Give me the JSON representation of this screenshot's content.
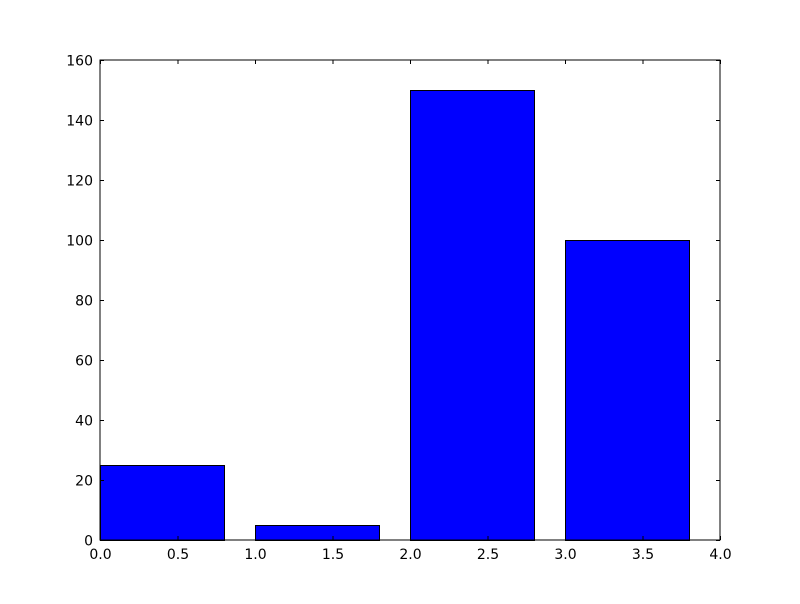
{
  "chart_data": {
    "type": "bar",
    "x": [
      0,
      1,
      2,
      3
    ],
    "bar_width": 0.8,
    "values": [
      25,
      5,
      150,
      100
    ],
    "xlim": [
      0,
      4
    ],
    "ylim": [
      0,
      160
    ],
    "xticks": [
      "0.0",
      "0.5",
      "1.0",
      "1.5",
      "2.0",
      "2.5",
      "3.0",
      "3.5",
      "4.0"
    ],
    "yticks": [
      "0",
      "20",
      "40",
      "60",
      "80",
      "100",
      "120",
      "140",
      "160"
    ],
    "bar_color": "#0000ff",
    "edge_color": "#000000",
    "grid": false,
    "title": "",
    "xlabel": "",
    "ylabel": ""
  }
}
